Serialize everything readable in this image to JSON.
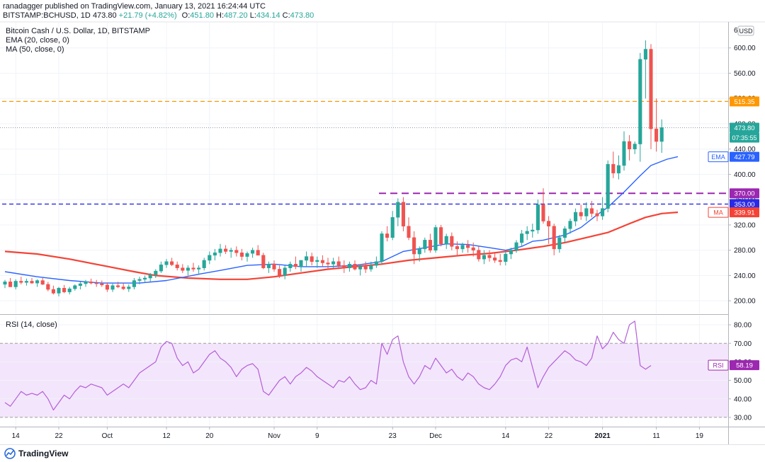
{
  "header": {
    "published": "ranadagger published on TradingView.com, January 13, 2021 16:24:44 UTC",
    "symbol": "BITSTAMP:BCHUSD, 1D",
    "last_price": "473.80",
    "change": "+21.79 (+4.82%)",
    "o_label": "O:",
    "o": "451.80",
    "h_label": "H:",
    "h": "487.20",
    "l_label": "L:",
    "l": "434.14",
    "c_label": "C:",
    "c": "473.80"
  },
  "legend": {
    "title": "Bitcoin Cash / U.S. Dollar, 1D, BITSTAMP",
    "ema": "EMA (20, close, 0)",
    "ma": "MA (50, close, 0)"
  },
  "rsi_legend": "RSI (14, close)",
  "footer": {
    "brand": "TradingView"
  },
  "colors": {
    "up": "#26a69a",
    "down": "#ef5350",
    "ema": "#2962ff",
    "ma": "#f44336",
    "rsi": "#b45fd8",
    "rsi_band": "#f3e5fb",
    "orange": "#ff9800",
    "purple": "#9c27b0",
    "blue": "#2a2ae6"
  },
  "chart_data": [
    {
      "type": "candlestick",
      "title": "Bitcoin Cash / U.S. Dollar, 1D, BITSTAMP",
      "currency": "USD",
      "ylim": [
        180,
        640
      ],
      "y_ticks": [
        200,
        240,
        280,
        320,
        360,
        400,
        440,
        480,
        520,
        560,
        600
      ],
      "y_tick_labels": [
        "200.00",
        "240.00",
        "280.00",
        "320.00",
        "360.00",
        "400.00",
        "440.00",
        "480.00",
        "520.00",
        "560.00",
        "600.00"
      ],
      "top_tick_label": "6",
      "x_start": "2020-09-12",
      "x_tick_labels": [
        "14",
        "22",
        "Oct",
        "12",
        "20",
        "Nov",
        "9",
        "23",
        "Dec",
        "14",
        "22",
        "2021",
        "11",
        "19"
      ],
      "x_tick_days": [
        2,
        10,
        19,
        30,
        38,
        50,
        58,
        72,
        80,
        93,
        101,
        111,
        121,
        129
      ],
      "candles": [
        [
          226,
          233,
          220,
          230
        ],
        [
          230,
          236,
          225,
          222
        ],
        [
          222,
          234,
          218,
          231
        ],
        [
          231,
          238,
          226,
          229
        ],
        [
          229,
          235,
          224,
          231
        ],
        [
          231,
          236,
          227,
          228
        ],
        [
          228,
          234,
          222,
          232
        ],
        [
          232,
          236,
          225,
          226
        ],
        [
          226,
          230,
          215,
          218
        ],
        [
          218,
          224,
          210,
          212
        ],
        [
          212,
          222,
          207,
          220
        ],
        [
          220,
          225,
          212,
          214
        ],
        [
          214,
          222,
          210,
          219
        ],
        [
          219,
          226,
          216,
          224
        ],
        [
          224,
          230,
          218,
          227
        ],
        [
          227,
          233,
          222,
          230
        ],
        [
          230,
          235,
          226,
          228
        ],
        [
          228,
          233,
          222,
          227
        ],
        [
          227,
          232,
          222,
          225
        ],
        [
          225,
          229,
          214,
          218
        ],
        [
          218,
          227,
          214,
          224
        ],
        [
          224,
          230,
          220,
          222
        ],
        [
          222,
          228,
          217,
          219
        ],
        [
          219,
          226,
          214,
          222
        ],
        [
          222,
          236,
          218,
          232
        ],
        [
          232,
          238,
          226,
          234
        ],
        [
          234,
          240,
          230,
          236
        ],
        [
          236,
          244,
          230,
          241
        ],
        [
          241,
          250,
          236,
          247
        ],
        [
          247,
          262,
          244,
          257
        ],
        [
          257,
          266,
          252,
          262
        ],
        [
          262,
          268,
          255,
          257
        ],
        [
          257,
          262,
          248,
          252
        ],
        [
          252,
          258,
          244,
          248
        ],
        [
          248,
          256,
          240,
          252
        ],
        [
          252,
          260,
          246,
          250
        ],
        [
          250,
          256,
          243,
          252
        ],
        [
          252,
          268,
          248,
          264
        ],
        [
          264,
          278,
          258,
          272
        ],
        [
          272,
          282,
          264,
          276
        ],
        [
          276,
          290,
          270,
          282
        ],
        [
          282,
          288,
          274,
          278
        ],
        [
          278,
          284,
          268,
          280
        ],
        [
          280,
          286,
          270,
          276
        ],
        [
          276,
          282,
          264,
          270
        ],
        [
          270,
          278,
          262,
          275
        ],
        [
          275,
          284,
          268,
          280
        ],
        [
          280,
          288,
          273,
          272
        ],
        [
          272,
          276,
          250,
          252
        ],
        [
          252,
          262,
          244,
          258
        ],
        [
          258,
          264,
          246,
          250
        ],
        [
          250,
          256,
          236,
          240
        ],
        [
          240,
          256,
          234,
          252
        ],
        [
          252,
          262,
          246,
          258
        ],
        [
          258,
          270,
          250,
          254
        ],
        [
          254,
          262,
          246,
          264
        ],
        [
          264,
          278,
          254,
          270
        ],
        [
          270,
          276,
          256,
          262
        ],
        [
          262,
          270,
          252,
          264
        ],
        [
          264,
          272,
          254,
          260
        ],
        [
          260,
          268,
          250,
          258
        ],
        [
          258,
          268,
          252,
          262
        ],
        [
          262,
          270,
          250,
          256
        ],
        [
          256,
          264,
          244,
          252
        ],
        [
          252,
          262,
          246,
          258
        ],
        [
          258,
          264,
          248,
          250
        ],
        [
          250,
          258,
          240,
          254
        ],
        [
          254,
          262,
          244,
          250
        ],
        [
          250,
          262,
          246,
          256
        ],
        [
          256,
          270,
          252,
          262
        ],
        [
          262,
          310,
          258,
          306
        ],
        [
          306,
          318,
          294,
          300
        ],
        [
          300,
          342,
          296,
          332
        ],
        [
          332,
          362,
          318,
          356
        ],
        [
          356,
          364,
          310,
          318
        ],
        [
          318,
          332,
          296,
          300
        ],
        [
          300,
          310,
          258,
          274
        ],
        [
          274,
          286,
          262,
          282
        ],
        [
          282,
          300,
          276,
          296
        ],
        [
          296,
          306,
          276,
          280
        ],
        [
          280,
          320,
          276,
          316
        ],
        [
          316,
          320,
          286,
          290
        ],
        [
          290,
          306,
          282,
          302
        ],
        [
          302,
          308,
          280,
          286
        ],
        [
          286,
          294,
          270,
          282
        ],
        [
          282,
          292,
          276,
          288
        ],
        [
          288,
          296,
          276,
          284
        ],
        [
          284,
          292,
          270,
          280
        ],
        [
          280,
          286,
          262,
          266
        ],
        [
          266,
          280,
          258,
          272
        ],
        [
          272,
          280,
          262,
          268
        ],
        [
          268,
          276,
          260,
          264
        ],
        [
          264,
          274,
          256,
          262
        ],
        [
          262,
          278,
          256,
          274
        ],
        [
          274,
          284,
          266,
          280
        ],
        [
          280,
          296,
          276,
          292
        ],
        [
          292,
          312,
          286,
          306
        ],
        [
          306,
          318,
          296,
          310
        ],
        [
          310,
          322,
          300,
          312
        ],
        [
          312,
          360,
          306,
          352
        ],
        [
          352,
          378,
          322,
          326
        ],
        [
          326,
          334,
          290,
          318
        ],
        [
          318,
          322,
          272,
          282
        ],
        [
          282,
          304,
          276,
          300
        ],
        [
          300,
          318,
          292,
          314
        ],
        [
          314,
          330,
          306,
          326
        ],
        [
          326,
          346,
          318,
          340
        ],
        [
          340,
          352,
          328,
          334
        ],
        [
          334,
          356,
          326,
          346
        ],
        [
          346,
          358,
          332,
          338
        ],
        [
          338,
          344,
          326,
          334
        ],
        [
          334,
          364,
          328,
          346
        ],
        [
          346,
          422,
          340,
          416
        ],
        [
          416,
          436,
          394,
          402
        ],
        [
          402,
          430,
          392,
          414
        ],
        [
          414,
          468,
          406,
          452
        ],
        [
          452,
          462,
          422,
          440
        ],
        [
          440,
          452,
          432,
          448
        ],
        [
          448,
          592,
          420,
          582
        ],
        [
          582,
          612,
          520,
          598
        ],
        [
          598,
          606,
          440,
          472
        ],
        [
          472,
          520,
          436,
          452
        ],
        [
          452,
          487,
          434,
          474
        ]
      ],
      "ema20": [
        [
          0,
          246
        ],
        [
          6,
          238
        ],
        [
          12,
          232
        ],
        [
          18,
          228
        ],
        [
          25,
          228
        ],
        [
          30,
          232
        ],
        [
          36,
          242
        ],
        [
          40,
          248
        ],
        [
          45,
          256
        ],
        [
          50,
          258
        ],
        [
          55,
          254
        ],
        [
          60,
          254
        ],
        [
          65,
          256
        ],
        [
          70,
          262
        ],
        [
          74,
          278
        ],
        [
          78,
          284
        ],
        [
          82,
          290
        ],
        [
          86,
          289
        ],
        [
          90,
          284
        ],
        [
          93,
          280
        ],
        [
          96,
          286
        ],
        [
          98,
          294
        ],
        [
          100,
          296
        ],
        [
          104,
          304
        ],
        [
          107,
          316
        ],
        [
          110,
          336
        ],
        [
          112,
          348
        ],
        [
          115,
          372
        ],
        [
          118,
          398
        ],
        [
          120,
          414
        ],
        [
          123,
          424
        ],
        [
          125,
          428
        ]
      ],
      "ma50": [
        [
          0,
          278
        ],
        [
          6,
          274
        ],
        [
          12,
          266
        ],
        [
          18,
          256
        ],
        [
          24,
          246
        ],
        [
          28,
          240
        ],
        [
          34,
          236
        ],
        [
          40,
          234
        ],
        [
          45,
          234
        ],
        [
          50,
          238
        ],
        [
          55,
          244
        ],
        [
          60,
          250
        ],
        [
          65,
          254
        ],
        [
          70,
          258
        ],
        [
          75,
          264
        ],
        [
          80,
          268
        ],
        [
          85,
          272
        ],
        [
          90,
          275
        ],
        [
          95,
          280
        ],
        [
          100,
          286
        ],
        [
          104,
          292
        ],
        [
          108,
          300
        ],
        [
          112,
          308
        ],
        [
          116,
          322
        ],
        [
          119,
          332
        ],
        [
          122,
          338
        ],
        [
          125,
          340
        ]
      ],
      "levels": [
        {
          "value": 515.35,
          "label": "515.35",
          "color": "#ff9800",
          "from_day": 0
        },
        {
          "value": 370,
          "label": "370.00",
          "color": "#9c27b0",
          "from_day": 70
        },
        {
          "value": 353,
          "label": "353.00",
          "color": "#2a2ae6",
          "from_day": 0
        }
      ],
      "price_tags": [
        {
          "value": 473.8,
          "label": "473.80",
          "sublabel": "07:35:55",
          "color": "#26a69a"
        },
        {
          "value": 427.79,
          "label": "427.79",
          "prefix": "EMA",
          "color": "#2962ff"
        },
        {
          "value": 339.91,
          "label": "339.91",
          "prefix": "MA",
          "color": "#f44336"
        }
      ]
    },
    {
      "type": "line",
      "title": "RSI (14, close)",
      "ylim": [
        25,
        85
      ],
      "y_ticks": [
        30,
        40,
        50,
        60,
        70,
        80
      ],
      "y_tick_labels": [
        "30.00",
        "40.00",
        "50.00",
        "60.00",
        "70.00",
        "80.00"
      ],
      "band": [
        30,
        70
      ],
      "last_value": 58.19,
      "last_label": "58.19",
      "tag_prefix": "RSI",
      "values": [
        38,
        36,
        40,
        44,
        42,
        43,
        42,
        44,
        40,
        34,
        38,
        42,
        40,
        44,
        47,
        46,
        48,
        47,
        46,
        42,
        44,
        46,
        48,
        46,
        50,
        54,
        56,
        58,
        60,
        68,
        71,
        70,
        62,
        58,
        60,
        54,
        56,
        60,
        64,
        66,
        62,
        60,
        57,
        52,
        56,
        58,
        59,
        56,
        44,
        42,
        46,
        50,
        52,
        48,
        52,
        54,
        57,
        55,
        52,
        50,
        48,
        46,
        50,
        49,
        52,
        48,
        45,
        46,
        50,
        48,
        70,
        64,
        72,
        74,
        60,
        52,
        48,
        52,
        58,
        56,
        62,
        58,
        54,
        56,
        52,
        50,
        54,
        52,
        48,
        46,
        45,
        48,
        52,
        58,
        61,
        62,
        60,
        68,
        57,
        46,
        52,
        57,
        60,
        63,
        66,
        64,
        61,
        60,
        58,
        62,
        74,
        67,
        70,
        76,
        72,
        70,
        80,
        82,
        58,
        56,
        58
      ]
    }
  ]
}
